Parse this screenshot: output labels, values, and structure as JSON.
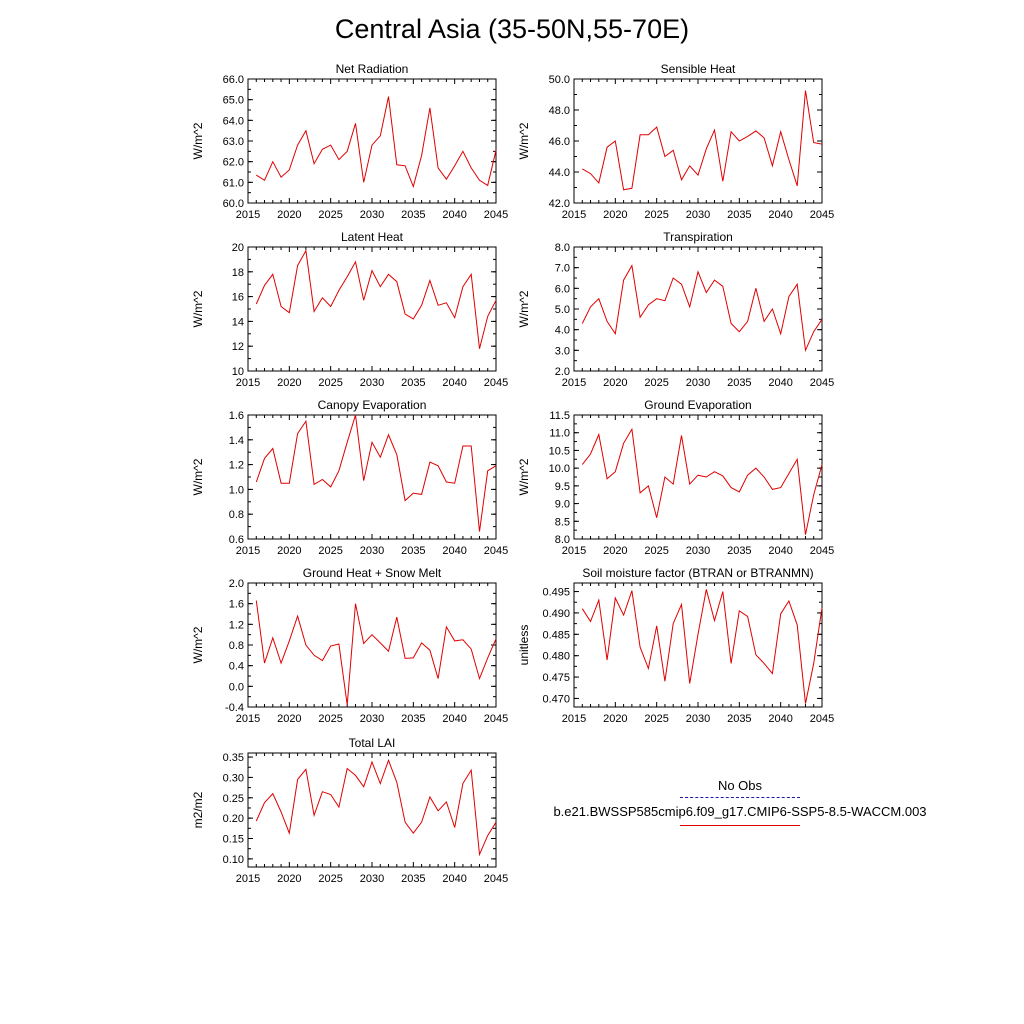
{
  "title": "Central Asia (35-50N,55-70E)",
  "legend": {
    "title": "No Obs",
    "case_name": "b.e21.BWSSP585cmip6.f09_g17.CMIP6-SSP5-8.5-WACCM.003",
    "colors": {
      "obs": "#1a1aa6",
      "model": "#e00000"
    }
  },
  "chart_data": [
    {
      "type": "line",
      "title": "Net Radiation",
      "ylabel": "W/m^2",
      "xlim": [
        2015,
        2045
      ],
      "ylim": [
        60.0,
        66.0
      ],
      "xticks": [
        2015,
        2020,
        2025,
        2030,
        2035,
        2040,
        2045
      ],
      "xtick_labels": [
        "2015",
        "2020",
        "2025",
        "2030",
        "2035",
        "2040",
        "2045"
      ],
      "yticks": [
        60.0,
        61.0,
        62.0,
        63.0,
        64.0,
        65.0,
        66.0
      ],
      "ytick_labels": [
        "60.0",
        "61.0",
        "62.0",
        "63.0",
        "64.0",
        "65.0",
        "66.0"
      ],
      "x": [
        2016,
        2017,
        2018,
        2019,
        2020,
        2021,
        2022,
        2023,
        2024,
        2025,
        2026,
        2027,
        2028,
        2029,
        2030,
        2031,
        2032,
        2033,
        2034,
        2035,
        2036,
        2037,
        2038,
        2039,
        2040,
        2041,
        2042,
        2043,
        2044,
        2045
      ],
      "values": [
        61.35,
        61.1,
        62.0,
        61.25,
        61.6,
        62.8,
        63.5,
        61.9,
        62.6,
        62.8,
        62.1,
        62.5,
        63.85,
        61.0,
        62.8,
        63.25,
        65.15,
        61.85,
        61.8,
        60.8,
        62.3,
        64.6,
        61.7,
        61.15,
        61.8,
        62.5,
        61.7,
        61.1,
        60.85,
        62.55
      ]
    },
    {
      "type": "line",
      "title": "Sensible Heat",
      "ylabel": "W/m^2",
      "xlim": [
        2015,
        2045
      ],
      "ylim": [
        42.0,
        50.0
      ],
      "xticks": [
        2015,
        2020,
        2025,
        2030,
        2035,
        2040,
        2045
      ],
      "xtick_labels": [
        "2015",
        "2020",
        "2025",
        "2030",
        "2035",
        "2040",
        "2045"
      ],
      "yticks": [
        42.0,
        44.0,
        46.0,
        48.0,
        50.0
      ],
      "ytick_labels": [
        "42.0",
        "44.0",
        "46.0",
        "48.0",
        "50.0"
      ],
      "x": [
        2016,
        2017,
        2018,
        2019,
        2020,
        2021,
        2022,
        2023,
        2024,
        2025,
        2026,
        2027,
        2028,
        2029,
        2030,
        2031,
        2032,
        2033,
        2034,
        2035,
        2036,
        2037,
        2038,
        2039,
        2040,
        2041,
        2042,
        2043,
        2044,
        2045
      ],
      "values": [
        44.2,
        43.9,
        43.3,
        45.6,
        46.0,
        42.85,
        42.95,
        46.4,
        46.4,
        46.9,
        45.0,
        45.4,
        43.5,
        44.4,
        43.8,
        45.5,
        46.7,
        43.4,
        46.6,
        46.0,
        46.3,
        46.65,
        46.2,
        44.4,
        46.6,
        44.8,
        43.1,
        49.25,
        45.9,
        45.8
      ]
    },
    {
      "type": "line",
      "title": "Latent Heat",
      "ylabel": "W/m^2",
      "xlim": [
        2015,
        2045
      ],
      "ylim": [
        10,
        20
      ],
      "xticks": [
        2015,
        2020,
        2025,
        2030,
        2035,
        2040,
        2045
      ],
      "xtick_labels": [
        "2015",
        "2020",
        "2025",
        "2030",
        "2035",
        "2040",
        "2045"
      ],
      "yticks": [
        10,
        12,
        14,
        16,
        18,
        20
      ],
      "ytick_labels": [
        "10",
        "12",
        "14",
        "16",
        "18",
        "20"
      ],
      "x": [
        2016,
        2017,
        2018,
        2019,
        2020,
        2021,
        2022,
        2023,
        2024,
        2025,
        2026,
        2027,
        2028,
        2029,
        2030,
        2031,
        2032,
        2033,
        2034,
        2035,
        2036,
        2037,
        2038,
        2039,
        2040,
        2041,
        2042,
        2043,
        2044,
        2045
      ],
      "values": [
        15.4,
        16.9,
        17.8,
        15.2,
        14.7,
        18.5,
        19.7,
        14.8,
        15.9,
        15.2,
        16.5,
        17.6,
        18.8,
        15.7,
        18.1,
        16.8,
        17.8,
        17.2,
        14.6,
        14.2,
        15.3,
        17.3,
        15.3,
        15.5,
        14.3,
        16.8,
        17.8,
        11.8,
        14.4,
        15.7
      ]
    },
    {
      "type": "line",
      "title": "Transpiration",
      "ylabel": "W/m^2",
      "xlim": [
        2015,
        2045
      ],
      "ylim": [
        2.0,
        8.0
      ],
      "xticks": [
        2015,
        2020,
        2025,
        2030,
        2035,
        2040,
        2045
      ],
      "xtick_labels": [
        "2015",
        "2020",
        "2025",
        "2030",
        "2035",
        "2040",
        "2045"
      ],
      "yticks": [
        2.0,
        3.0,
        4.0,
        5.0,
        6.0,
        7.0,
        8.0
      ],
      "ytick_labels": [
        "2.0",
        "3.0",
        "4.0",
        "5.0",
        "6.0",
        "7.0",
        "8.0"
      ],
      "x": [
        2016,
        2017,
        2018,
        2019,
        2020,
        2021,
        2022,
        2023,
        2024,
        2025,
        2026,
        2027,
        2028,
        2029,
        2030,
        2031,
        2032,
        2033,
        2034,
        2035,
        2036,
        2037,
        2038,
        2039,
        2040,
        2041,
        2042,
        2043,
        2044,
        2045
      ],
      "values": [
        4.3,
        5.1,
        5.5,
        4.4,
        3.8,
        6.4,
        7.1,
        4.6,
        5.2,
        5.5,
        5.4,
        6.5,
        6.2,
        5.1,
        6.8,
        5.8,
        6.4,
        6.1,
        4.3,
        3.9,
        4.4,
        6.0,
        4.4,
        5.0,
        3.8,
        5.6,
        6.2,
        3.0,
        3.9,
        4.5
      ]
    },
    {
      "type": "line",
      "title": "Canopy Evaporation",
      "ylabel": "W/m^2",
      "xlim": [
        2015,
        2045
      ],
      "ylim": [
        0.6,
        1.6
      ],
      "xticks": [
        2015,
        2020,
        2025,
        2030,
        2035,
        2040,
        2045
      ],
      "xtick_labels": [
        "2015",
        "2020",
        "2025",
        "2030",
        "2035",
        "2040",
        "2045"
      ],
      "yticks": [
        0.6,
        0.8,
        1.0,
        1.2,
        1.4,
        1.6
      ],
      "ytick_labels": [
        "0.6",
        "0.8",
        "1.0",
        "1.2",
        "1.4",
        "1.6"
      ],
      "x": [
        2016,
        2017,
        2018,
        2019,
        2020,
        2021,
        2022,
        2023,
        2024,
        2025,
        2026,
        2027,
        2028,
        2029,
        2030,
        2031,
        2032,
        2033,
        2034,
        2035,
        2036,
        2037,
        2038,
        2039,
        2040,
        2041,
        2042,
        2043,
        2044,
        2045
      ],
      "values": [
        1.06,
        1.25,
        1.33,
        1.05,
        1.05,
        1.45,
        1.55,
        1.04,
        1.08,
        1.02,
        1.15,
        1.38,
        1.6,
        1.07,
        1.38,
        1.26,
        1.44,
        1.28,
        0.91,
        0.97,
        0.96,
        1.22,
        1.19,
        1.06,
        1.05,
        1.35,
        1.35,
        0.66,
        1.15,
        1.19
      ]
    },
    {
      "type": "line",
      "title": "Ground Evaporation",
      "ylabel": "W/m^2",
      "xlim": [
        2015,
        2045
      ],
      "ylim": [
        8.0,
        11.5
      ],
      "xticks": [
        2015,
        2020,
        2025,
        2030,
        2035,
        2040,
        2045
      ],
      "xtick_labels": [
        "2015",
        "2020",
        "2025",
        "2030",
        "2035",
        "2040",
        "2045"
      ],
      "yticks": [
        8.0,
        8.5,
        9.0,
        9.5,
        10.0,
        10.5,
        11.0,
        11.5
      ],
      "ytick_labels": [
        "8.0",
        "8.5",
        "9.0",
        "9.5",
        "10.0",
        "10.5",
        "11.0",
        "11.5"
      ],
      "x": [
        2016,
        2017,
        2018,
        2019,
        2020,
        2021,
        2022,
        2023,
        2024,
        2025,
        2026,
        2027,
        2028,
        2029,
        2030,
        2031,
        2032,
        2033,
        2034,
        2035,
        2036,
        2037,
        2038,
        2039,
        2040,
        2041,
        2042,
        2043,
        2044,
        2045
      ],
      "values": [
        10.1,
        10.4,
        10.95,
        9.7,
        9.9,
        10.7,
        11.1,
        9.3,
        9.5,
        8.6,
        9.75,
        9.55,
        10.92,
        9.55,
        9.8,
        9.75,
        9.9,
        9.78,
        9.45,
        9.33,
        9.8,
        10.0,
        9.75,
        9.4,
        9.45,
        9.85,
        10.25,
        8.12,
        9.25,
        10.1
      ]
    },
    {
      "type": "line",
      "title": "Ground Heat + Snow Melt",
      "ylabel": "W/m^2",
      "xlim": [
        2015,
        2045
      ],
      "ylim": [
        -0.4,
        2.0
      ],
      "xticks": [
        2015,
        2020,
        2025,
        2030,
        2035,
        2040,
        2045
      ],
      "xtick_labels": [
        "2015",
        "2020",
        "2025",
        "2030",
        "2035",
        "2040",
        "2045"
      ],
      "yticks": [
        -0.4,
        0.0,
        0.4,
        0.8,
        1.2,
        1.6,
        2.0
      ],
      "ytick_labels": [
        "-0.4",
        "0.0",
        "0.4",
        "0.8",
        "1.2",
        "1.6",
        "2.0"
      ],
      "x": [
        2016,
        2017,
        2018,
        2019,
        2020,
        2021,
        2022,
        2023,
        2024,
        2025,
        2026,
        2027,
        2028,
        2029,
        2030,
        2031,
        2032,
        2033,
        2034,
        2035,
        2036,
        2037,
        2038,
        2039,
        2040,
        2041,
        2042,
        2043,
        2044,
        2045
      ],
      "values": [
        1.66,
        0.45,
        0.94,
        0.45,
        0.88,
        1.36,
        0.8,
        0.6,
        0.5,
        0.78,
        0.82,
        -0.36,
        1.6,
        0.83,
        1.0,
        0.84,
        0.68,
        1.34,
        0.54,
        0.55,
        0.84,
        0.7,
        0.15,
        1.15,
        0.88,
        0.9,
        0.72,
        0.15,
        0.55,
        0.92
      ]
    },
    {
      "type": "line",
      "title": "Soil moisture factor (BTRAN or BTRANMN)",
      "ylabel": "unitless",
      "xlim": [
        2015,
        2045
      ],
      "ylim": [
        0.468,
        0.497
      ],
      "xticks": [
        2015,
        2020,
        2025,
        2030,
        2035,
        2040,
        2045
      ],
      "xtick_labels": [
        "2015",
        "2020",
        "2025",
        "2030",
        "2035",
        "2040",
        "2045"
      ],
      "yticks": [
        0.47,
        0.475,
        0.48,
        0.485,
        0.49,
        0.495
      ],
      "ytick_labels": [
        "0.470",
        "0.475",
        "0.480",
        "0.485",
        "0.490",
        "0.495"
      ],
      "x": [
        2016,
        2017,
        2018,
        2019,
        2020,
        2021,
        2022,
        2023,
        2024,
        2025,
        2026,
        2027,
        2028,
        2029,
        2030,
        2031,
        2032,
        2033,
        2034,
        2035,
        2036,
        2037,
        2038,
        2039,
        2040,
        2041,
        2042,
        2043,
        2044,
        2045
      ],
      "values": [
        0.491,
        0.488,
        0.493,
        0.479,
        0.4935,
        0.4895,
        0.4952,
        0.482,
        0.477,
        0.487,
        0.474,
        0.4875,
        0.492,
        0.4735,
        0.485,
        0.4955,
        0.4882,
        0.495,
        0.4782,
        0.4905,
        0.4892,
        0.4802,
        0.4782,
        0.4758,
        0.4898,
        0.4928,
        0.4872,
        0.4688,
        0.4782,
        0.4912
      ]
    },
    {
      "type": "line",
      "title": "Total LAI",
      "ylabel": "m2/m2",
      "xlim": [
        2015,
        2045
      ],
      "ylim": [
        0.08,
        0.36
      ],
      "xticks": [
        2015,
        2020,
        2025,
        2030,
        2035,
        2040,
        2045
      ],
      "xtick_labels": [
        "2015",
        "2020",
        "2025",
        "2030",
        "2035",
        "2040",
        "2045"
      ],
      "yticks": [
        0.1,
        0.15,
        0.2,
        0.25,
        0.3,
        0.35
      ],
      "ytick_labels": [
        "0.10",
        "0.15",
        "0.20",
        "0.25",
        "0.30",
        "0.35"
      ],
      "x": [
        2016,
        2017,
        2018,
        2019,
        2020,
        2021,
        2022,
        2023,
        2024,
        2025,
        2026,
        2027,
        2028,
        2029,
        2030,
        2031,
        2032,
        2033,
        2034,
        2035,
        2036,
        2037,
        2038,
        2039,
        2040,
        2041,
        2042,
        2043,
        2044,
        2045
      ],
      "values": [
        0.193,
        0.238,
        0.26,
        0.215,
        0.163,
        0.295,
        0.32,
        0.207,
        0.265,
        0.258,
        0.227,
        0.322,
        0.305,
        0.277,
        0.338,
        0.285,
        0.342,
        0.288,
        0.19,
        0.163,
        0.19,
        0.252,
        0.218,
        0.24,
        0.177,
        0.285,
        0.318,
        0.111,
        0.157,
        0.19
      ]
    }
  ]
}
